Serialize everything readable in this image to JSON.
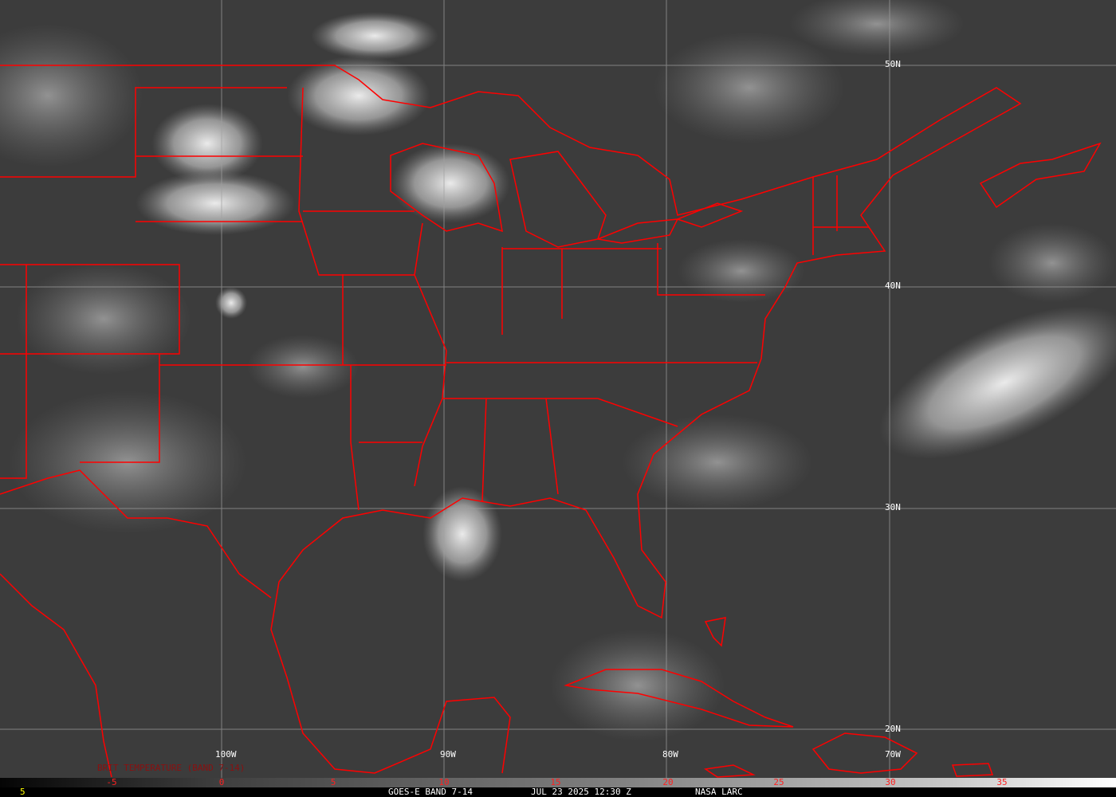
{
  "product": {
    "satellite": "GOES-E",
    "band": "BAND 7-14",
    "date": "JUL 23 2025",
    "time": "12:30 Z",
    "source": "NASA LARC"
  },
  "footer": {
    "left_number": "5",
    "title": "GOES-E BAND 7-14",
    "datetime": "JUL 23 2025 12:30 Z",
    "credit": "NASA LARC"
  },
  "legend": {
    "label": "BRIT TEMPERATURE (BAND 7-14)",
    "ticks": [
      "-5",
      "0",
      "5",
      "10",
      "15",
      "20",
      "25",
      "30",
      "35"
    ]
  },
  "grid": {
    "latitudes": [
      "50N",
      "40N",
      "30N",
      "20N"
    ],
    "longitudes": [
      "100W",
      "90W",
      "80W",
      "70W"
    ]
  },
  "colors": {
    "borders": "#ff0000",
    "grid": "#a0a0a0",
    "legend_text": "#8a1010",
    "tick_text": "#ff2020",
    "footer_number": "#ffff00"
  }
}
